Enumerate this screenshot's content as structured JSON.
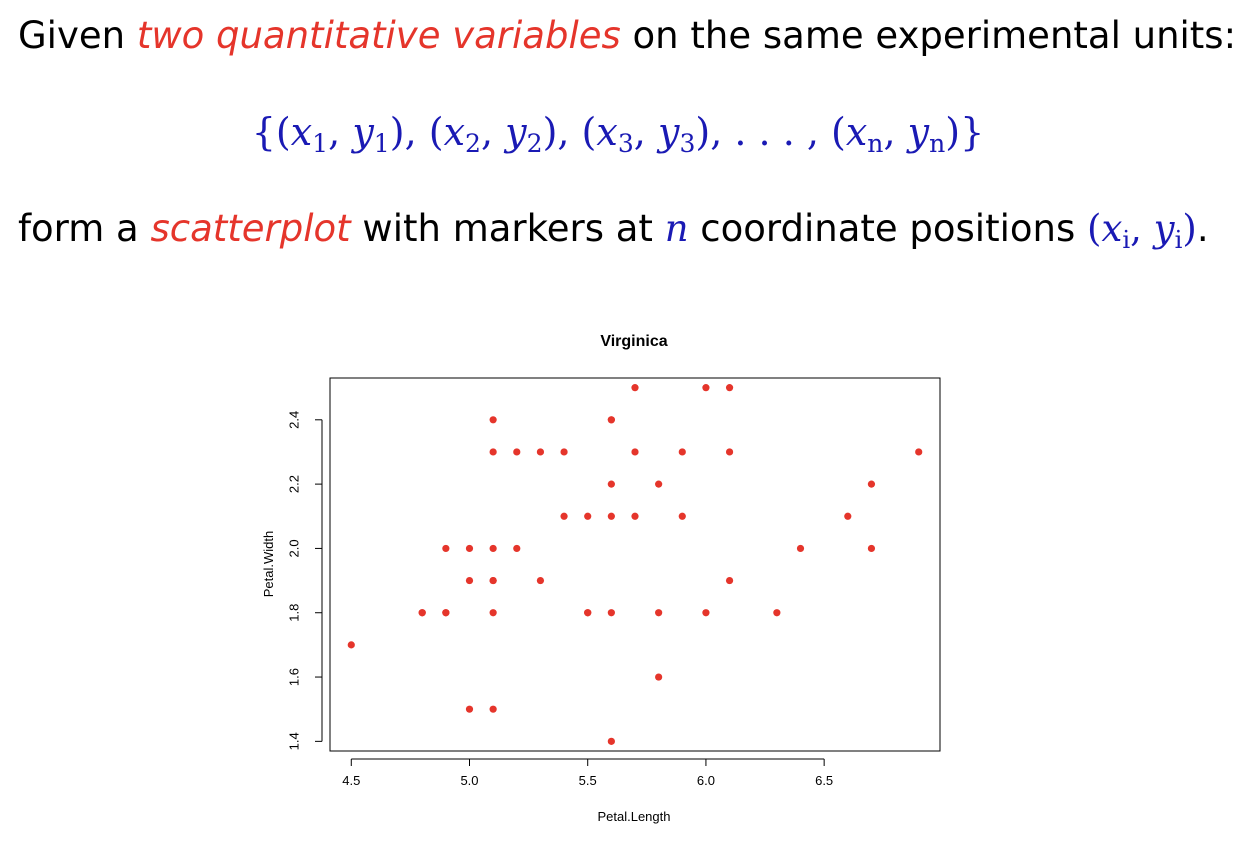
{
  "slide": {
    "line1": {
      "before": "Given ",
      "emph": "two quantitative variables",
      "after": " on the same experimental units:"
    },
    "formula": {
      "open": "{(",
      "p1": "), (",
      "p2": "), (",
      "p3": "), . . . , (",
      "close": ")}",
      "x": "x",
      "y": "y",
      "comma": ", ",
      "s1": "1",
      "s2": "2",
      "s3": "3",
      "sn": "n"
    },
    "line3": {
      "before": "form a ",
      "emph": "scatterplot",
      "middle": " with markers at ",
      "n": "n",
      "after": " coordinate positions ",
      "coord_open": "(",
      "coord_x": "x",
      "coord_i": "i",
      "coord_comma": ", ",
      "coord_y": "y",
      "coord_close": ")",
      "period": "."
    }
  },
  "colors": {
    "emphasis": "#e5352b",
    "math": "#1a1ab4",
    "points": "#e5352b"
  },
  "chart_data": {
    "type": "scatter",
    "title": "Virginica",
    "xlabel": "Petal.Length",
    "ylabel": "Petal.Width",
    "xlim": [
      4.41,
      6.99
    ],
    "ylim": [
      1.37,
      2.53
    ],
    "xticks": [
      4.5,
      5.0,
      5.5,
      6.0,
      6.5
    ],
    "xtick_labels": [
      "4.5",
      "5.0",
      "5.5",
      "6.0",
      "6.5"
    ],
    "yticks": [
      1.4,
      1.6,
      1.8,
      2.0,
      2.2,
      2.4
    ],
    "ytick_labels": [
      "1.4",
      "1.6",
      "1.8",
      "2.0",
      "2.2",
      "2.4"
    ],
    "grid": false,
    "x": [
      6.0,
      5.1,
      5.9,
      5.6,
      5.8,
      6.6,
      4.5,
      6.3,
      5.8,
      6.1,
      5.1,
      5.3,
      5.5,
      5.0,
      5.1,
      5.3,
      5.5,
      6.7,
      6.9,
      5.0,
      5.7,
      4.9,
      6.7,
      4.9,
      5.7,
      6.0,
      4.8,
      4.9,
      5.6,
      5.8,
      6.1,
      6.4,
      5.6,
      5.1,
      5.6,
      6.1,
      5.6,
      5.5,
      4.8,
      5.4,
      5.6,
      5.1,
      5.1,
      5.9,
      5.7,
      5.2,
      5.0,
      5.2,
      5.4,
      5.1
    ],
    "y": [
      2.5,
      1.9,
      2.1,
      1.8,
      2.2,
      2.1,
      1.7,
      1.8,
      1.8,
      2.5,
      2.0,
      1.9,
      2.1,
      2.0,
      2.4,
      2.3,
      1.8,
      2.2,
      2.3,
      1.5,
      2.3,
      2.0,
      2.0,
      1.8,
      2.1,
      1.8,
      1.8,
      1.8,
      2.1,
      1.6,
      1.9,
      2.0,
      2.2,
      1.5,
      1.4,
      2.3,
      2.4,
      1.8,
      1.8,
      2.1,
      2.4,
      2.3,
      1.9,
      2.3,
      2.5,
      2.3,
      1.9,
      2.0,
      2.3,
      1.8
    ]
  }
}
